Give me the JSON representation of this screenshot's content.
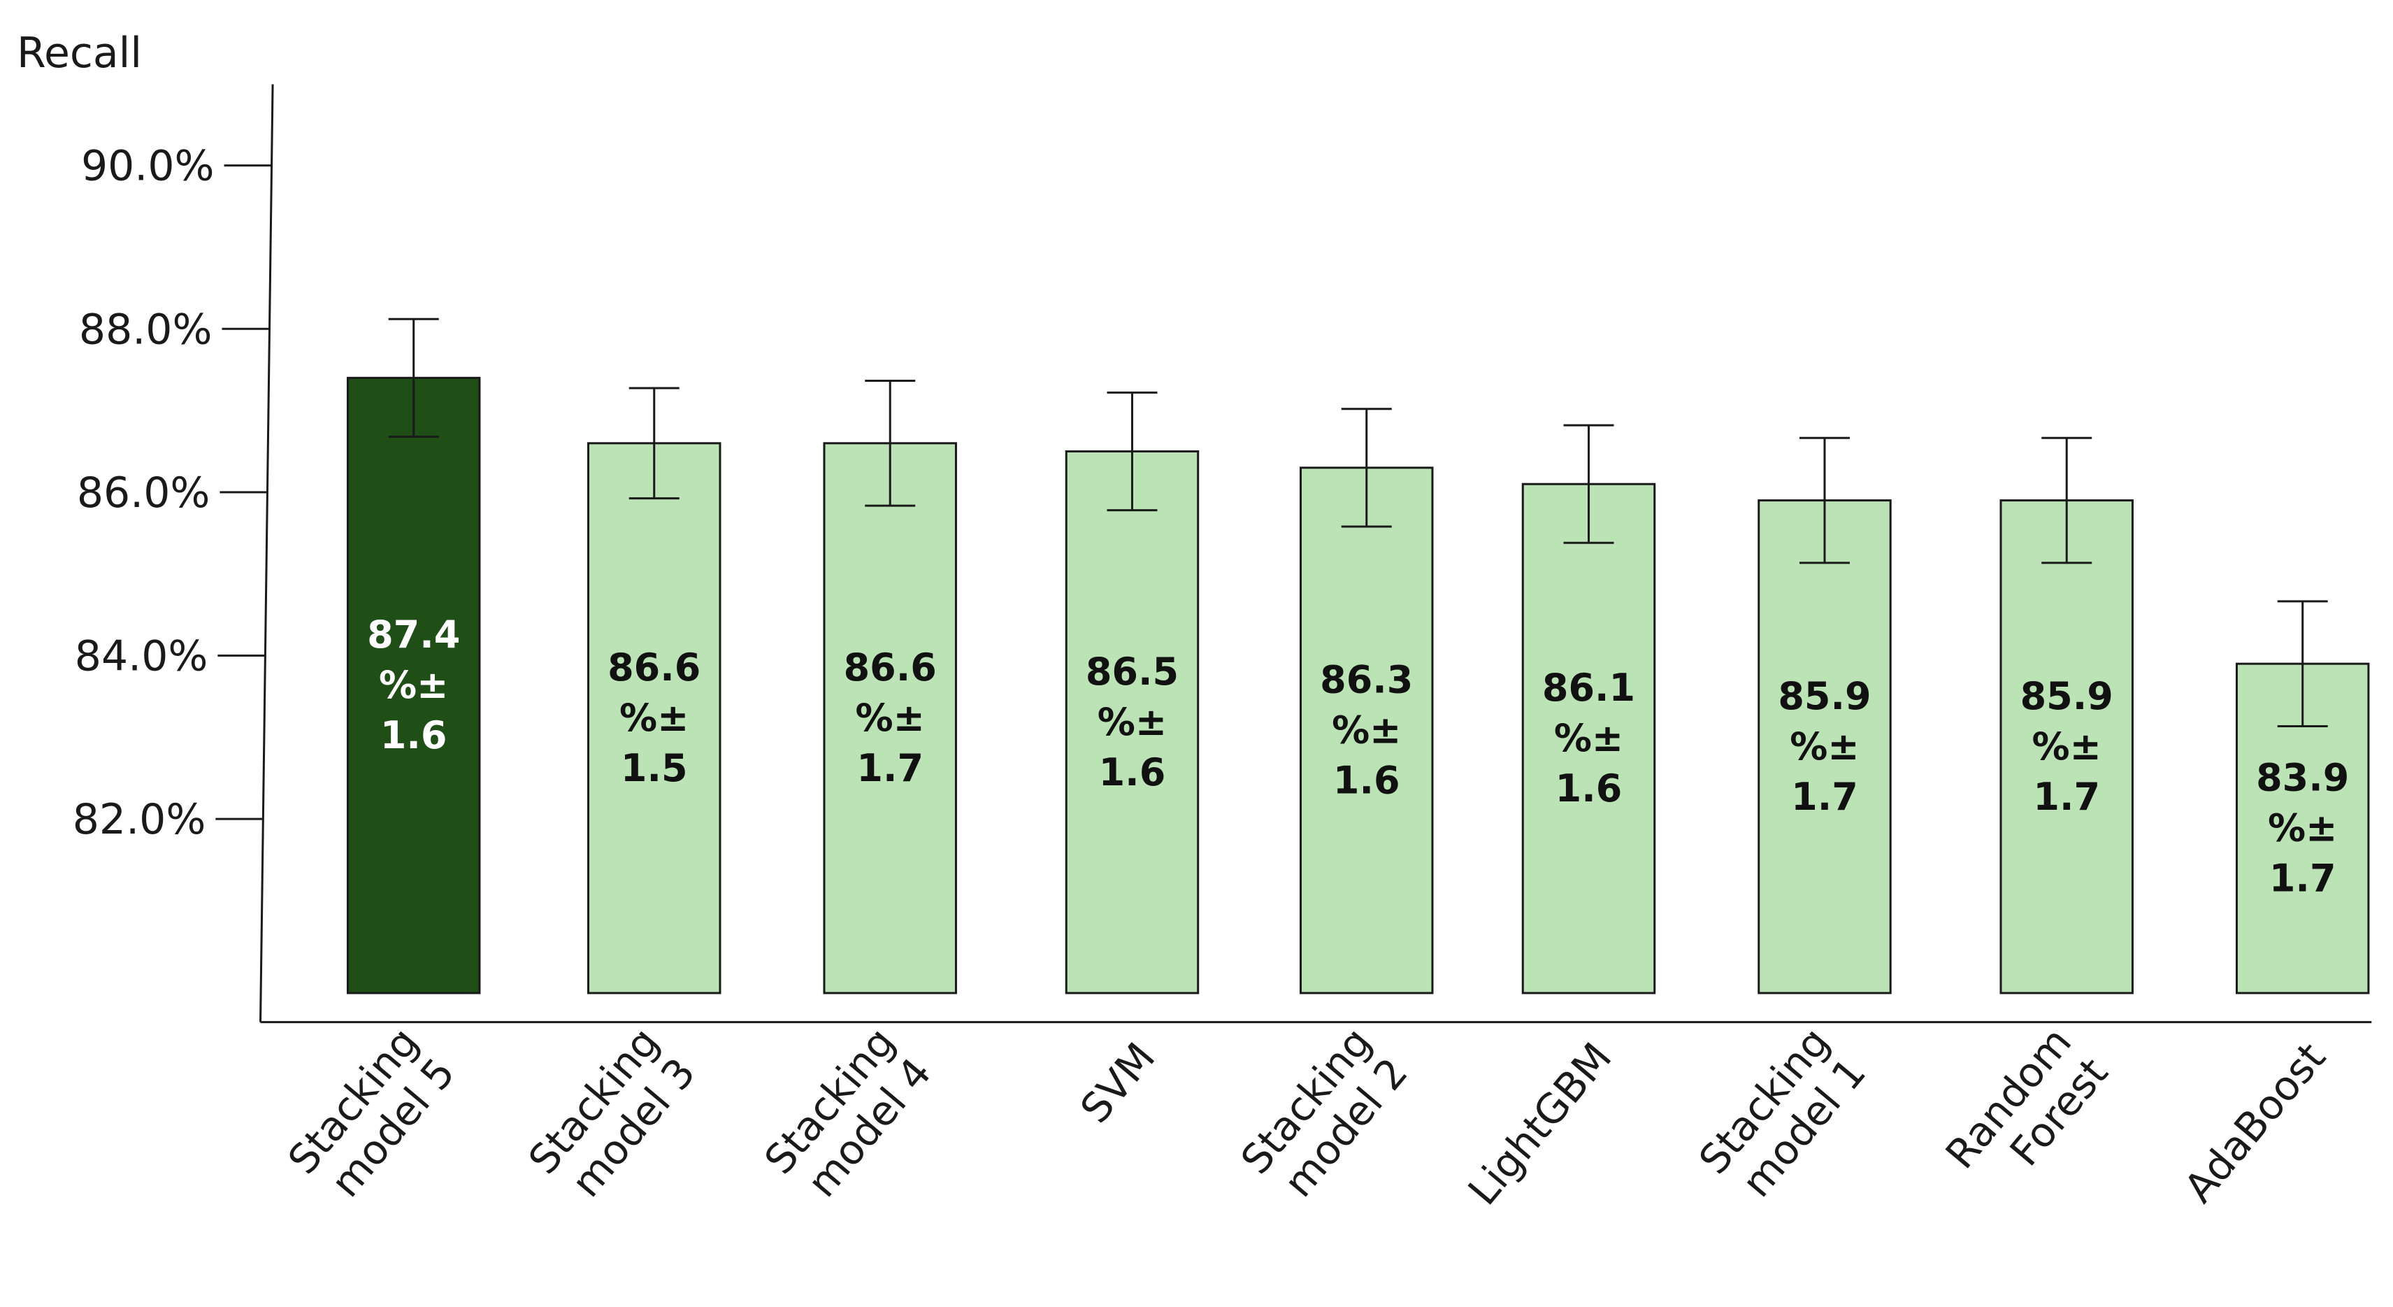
{
  "chart_data": {
    "type": "bar",
    "ylabel": "Recall",
    "xlabel": "",
    "title": "",
    "y_ticks": [
      "90.0%",
      "88.0%",
      "86.0%",
      "84.0%",
      "82.0%"
    ],
    "y_tick_values": [
      90.0,
      88.0,
      86.0,
      84.0,
      82.0
    ],
    "categories": [
      "Stacking model 5",
      "Stacking model 3",
      "Stacking model 4",
      "SVM",
      "Stacking model 2",
      "LightGBM",
      "Stacking model 1",
      "Random Forest",
      "AdaBoost"
    ],
    "category_lines": [
      [
        "Stacking",
        "model 5"
      ],
      [
        "Stacking",
        "model 3"
      ],
      [
        "Stacking",
        "model 4"
      ],
      [
        "SVM"
      ],
      [
        "Stacking",
        "model 2"
      ],
      [
        "LightGBM"
      ],
      [
        "Stacking",
        "model 1"
      ],
      [
        "Random",
        "Forest"
      ],
      [
        "AdaBoost"
      ]
    ],
    "values": [
      87.4,
      86.6,
      86.6,
      86.5,
      86.3,
      86.1,
      85.9,
      85.9,
      83.9
    ],
    "errors": [
      1.6,
      1.5,
      1.7,
      1.6,
      1.6,
      1.6,
      1.7,
      1.7,
      1.7
    ],
    "data_labels": [
      [
        "87.4",
        "%±",
        "1.6"
      ],
      [
        "86.6",
        "%±",
        "1.5"
      ],
      [
        "86.6",
        "%±",
        "1.7"
      ],
      [
        "86.5",
        "%±",
        "1.6"
      ],
      [
        "86.3",
        "%±",
        "1.6"
      ],
      [
        "86.1",
        "%±",
        "1.6"
      ],
      [
        "85.9",
        "%±",
        "1.7"
      ],
      [
        "85.9",
        "%±",
        "1.7"
      ],
      [
        "83.9",
        "%±",
        "1.7"
      ]
    ],
    "highlight_index": 0,
    "colors": {
      "highlight_fill": "#1f4e17",
      "bar_fill": "#bce3b6",
      "bar_stroke": "#1a1a1a",
      "highlight_label": "#ffffff",
      "label": "#111111",
      "axis": "#1a1a1a"
    },
    "grid": false,
    "legend": "none"
  }
}
